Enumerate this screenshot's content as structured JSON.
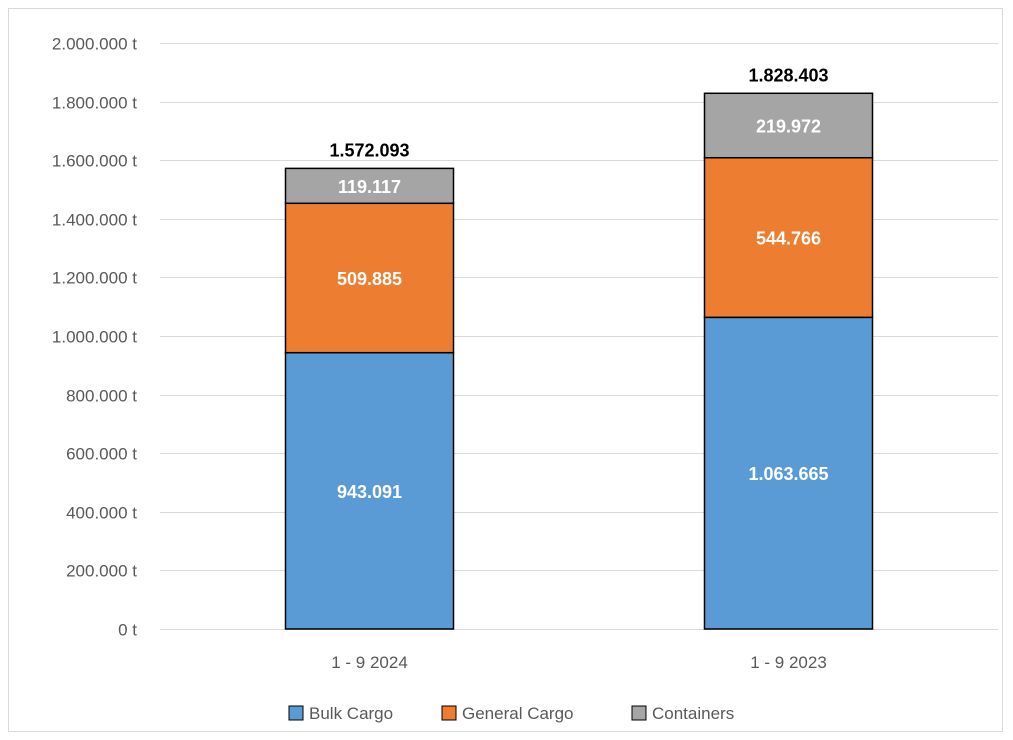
{
  "chart_data": {
    "type": "bar",
    "stacked": true,
    "categories": [
      "1 - 9 2024",
      "1 - 9 2023"
    ],
    "series": [
      {
        "name": "Bulk Cargo",
        "values": [
          943091,
          1063665
        ],
        "labels": [
          "943.091",
          "1.063.665"
        ],
        "color": "#5b9bd5"
      },
      {
        "name": "General Cargo",
        "values": [
          509885,
          544766
        ],
        "labels": [
          "509.885",
          "544.766"
        ],
        "color": "#ed7d31"
      },
      {
        "name": "Containers",
        "values": [
          119117,
          219972
        ],
        "labels": [
          "119.117",
          "219.972"
        ],
        "color": "#a5a5a5"
      }
    ],
    "totals": [
      1572093,
      1828403
    ],
    "total_labels": [
      "1.572.093",
      "1.828.403"
    ],
    "ylim": [
      0,
      2000000
    ],
    "yticks": [
      0,
      200000,
      400000,
      600000,
      800000,
      1000000,
      1200000,
      1400000,
      1600000,
      1800000,
      2000000
    ],
    "ytick_labels": [
      "0 t",
      "200.000 t",
      "400.000 t",
      "600.000 t",
      "800.000 t",
      "1.000.000 t",
      "1.200.000 t",
      "1.400.000 t",
      "1.600.000 t",
      "1.800.000 t",
      "2.000.000 t"
    ],
    "grid": true,
    "legend_position": "bottom",
    "title": "",
    "xlabel": "",
    "ylabel": ""
  }
}
